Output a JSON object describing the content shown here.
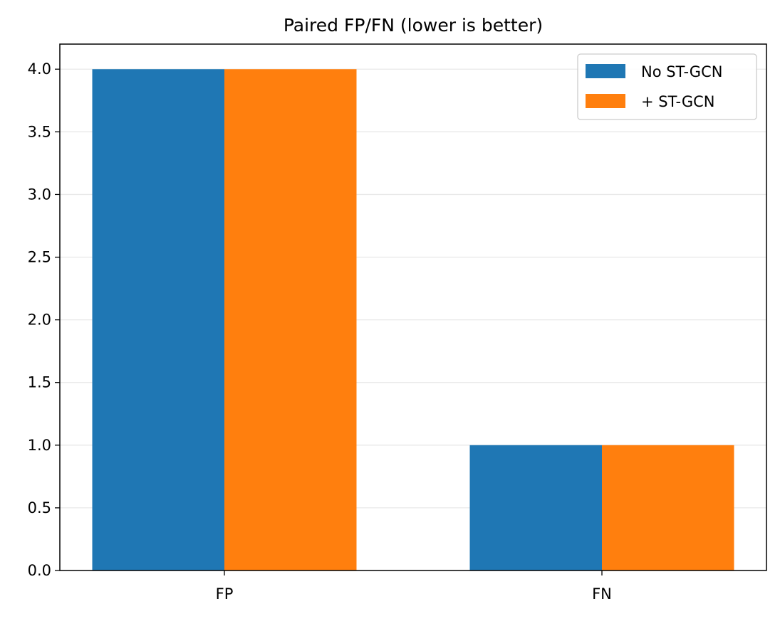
{
  "chart_data": {
    "type": "bar",
    "title": "Paired FP/FN (lower is better)",
    "xlabel": "",
    "ylabel": "",
    "categories": [
      "FP",
      "FN"
    ],
    "series": [
      {
        "name": "No ST-GCN",
        "values": [
          4,
          1
        ],
        "color": "#1f77b4"
      },
      {
        "name": "+ ST-GCN",
        "values": [
          4,
          1
        ],
        "color": "#ff7f0e"
      }
    ],
    "ylim": [
      0,
      4.2
    ],
    "yticks": [
      "0.0",
      "0.5",
      "1.0",
      "1.5",
      "2.0",
      "2.5",
      "3.0",
      "3.5",
      "4.0"
    ],
    "grid": "horizontal",
    "legend_position": "top-right"
  }
}
